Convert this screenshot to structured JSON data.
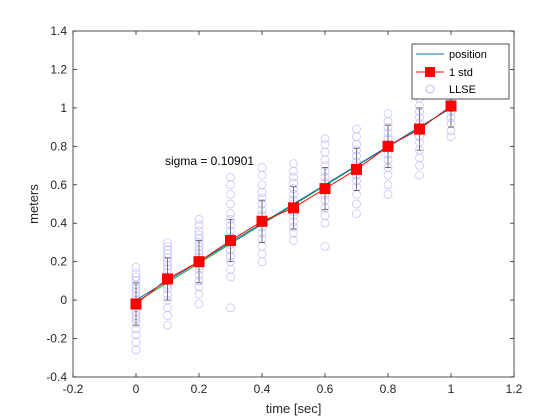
{
  "chart_data": {
    "type": "scatter",
    "title": "",
    "xlabel": "time [sec]",
    "ylabel": "meters",
    "xlim": [
      -0.2,
      1.2
    ],
    "ylim": [
      -0.4,
      1.4
    ],
    "xticks": [
      -0.2,
      0,
      0.2,
      0.4,
      0.6,
      0.8,
      1,
      1.2
    ],
    "yticks": [
      -0.4,
      -0.2,
      0,
      0.2,
      0.4,
      0.6,
      0.8,
      1,
      1.2,
      1.4
    ],
    "xtick_labels": [
      "-0.2",
      "0",
      "0.2",
      "0.4",
      "0.6",
      "0.8",
      "1",
      "1.2"
    ],
    "ytick_labels": [
      "-0.4",
      "-0.2",
      "0",
      "0.2",
      "0.4",
      "0.6",
      "0.8",
      "1",
      "1.2",
      "1.4"
    ],
    "grid": false,
    "legend_position": "top-right",
    "annotation": "sigma = 0.10901",
    "colors": {
      "position": "#0072bd",
      "fit": "#2ca02c",
      "std": "#ff0000",
      "llse": "#aaaaff"
    },
    "series": [
      {
        "name": "position",
        "kind": "line",
        "x": [
          0,
          1
        ],
        "y": [
          0,
          1
        ]
      },
      {
        "name": "1 std",
        "kind": "errorbar",
        "x": [
          0,
          0.1,
          0.2,
          0.3,
          0.4,
          0.5,
          0.6,
          0.7,
          0.8,
          0.9,
          1.0
        ],
        "y": [
          -0.02,
          0.11,
          0.2,
          0.31,
          0.41,
          0.48,
          0.58,
          0.68,
          0.8,
          0.89,
          1.01
        ],
        "err": [
          0.11,
          0.11,
          0.11,
          0.11,
          0.11,
          0.11,
          0.11,
          0.11,
          0.11,
          0.11,
          0.11
        ]
      },
      {
        "name": "LLSE",
        "kind": "scatter",
        "x": [
          0,
          0.1,
          0.2,
          0.3,
          0.4,
          0.5,
          0.6,
          0.7,
          0.8,
          0.9,
          1.0
        ],
        "y_samples": [
          [
            -0.26,
            -0.22,
            -0.18,
            -0.15,
            -0.12,
            -0.1,
            -0.08,
            -0.06,
            -0.04,
            -0.02,
            0.0,
            0.02,
            0.04,
            0.06,
            0.08,
            0.1,
            0.12,
            0.14,
            0.17
          ],
          [
            -0.13,
            -0.08,
            -0.04,
            0.0,
            0.03,
            0.06,
            0.08,
            0.1,
            0.12,
            0.14,
            0.16,
            0.18,
            0.2,
            0.22,
            0.24,
            0.26,
            0.28,
            0.3
          ],
          [
            -0.02,
            0.03,
            0.07,
            0.1,
            0.13,
            0.16,
            0.18,
            0.2,
            0.22,
            0.24,
            0.26,
            0.28,
            0.3,
            0.32,
            0.34,
            0.36,
            0.39,
            0.42
          ],
          [
            -0.04,
            0.12,
            0.16,
            0.2,
            0.23,
            0.26,
            0.29,
            0.31,
            0.33,
            0.36,
            0.39,
            0.42,
            0.45,
            0.5,
            0.55,
            0.6,
            0.64
          ],
          [
            0.2,
            0.24,
            0.28,
            0.32,
            0.35,
            0.38,
            0.41,
            0.44,
            0.47,
            0.5,
            0.53,
            0.56,
            0.6,
            0.65,
            0.69
          ],
          [
            0.31,
            0.35,
            0.38,
            0.41,
            0.44,
            0.46,
            0.48,
            0.5,
            0.52,
            0.55,
            0.58,
            0.61,
            0.64,
            0.67,
            0.71
          ],
          [
            0.28,
            0.4,
            0.44,
            0.48,
            0.52,
            0.55,
            0.58,
            0.61,
            0.64,
            0.67,
            0.7,
            0.73,
            0.77,
            0.81,
            0.84
          ],
          [
            0.45,
            0.5,
            0.55,
            0.59,
            0.62,
            0.65,
            0.68,
            0.7,
            0.72,
            0.75,
            0.78,
            0.81,
            0.85,
            0.89
          ],
          [
            0.55,
            0.6,
            0.65,
            0.69,
            0.73,
            0.76,
            0.79,
            0.81,
            0.84,
            0.87,
            0.9,
            0.93,
            0.97
          ],
          [
            0.65,
            0.7,
            0.74,
            0.78,
            0.82,
            0.85,
            0.88,
            0.9,
            0.92,
            0.95,
            0.98,
            1.01,
            1.05,
            1.1
          ],
          [
            0.85,
            0.88,
            0.92,
            0.95,
            0.98,
            1.0,
            1.03,
            1.06,
            1.1
          ]
        ]
      }
    ],
    "fit_line": {
      "x": [
        0,
        1
      ],
      "y": [
        -0.01,
        1.0
      ]
    }
  }
}
